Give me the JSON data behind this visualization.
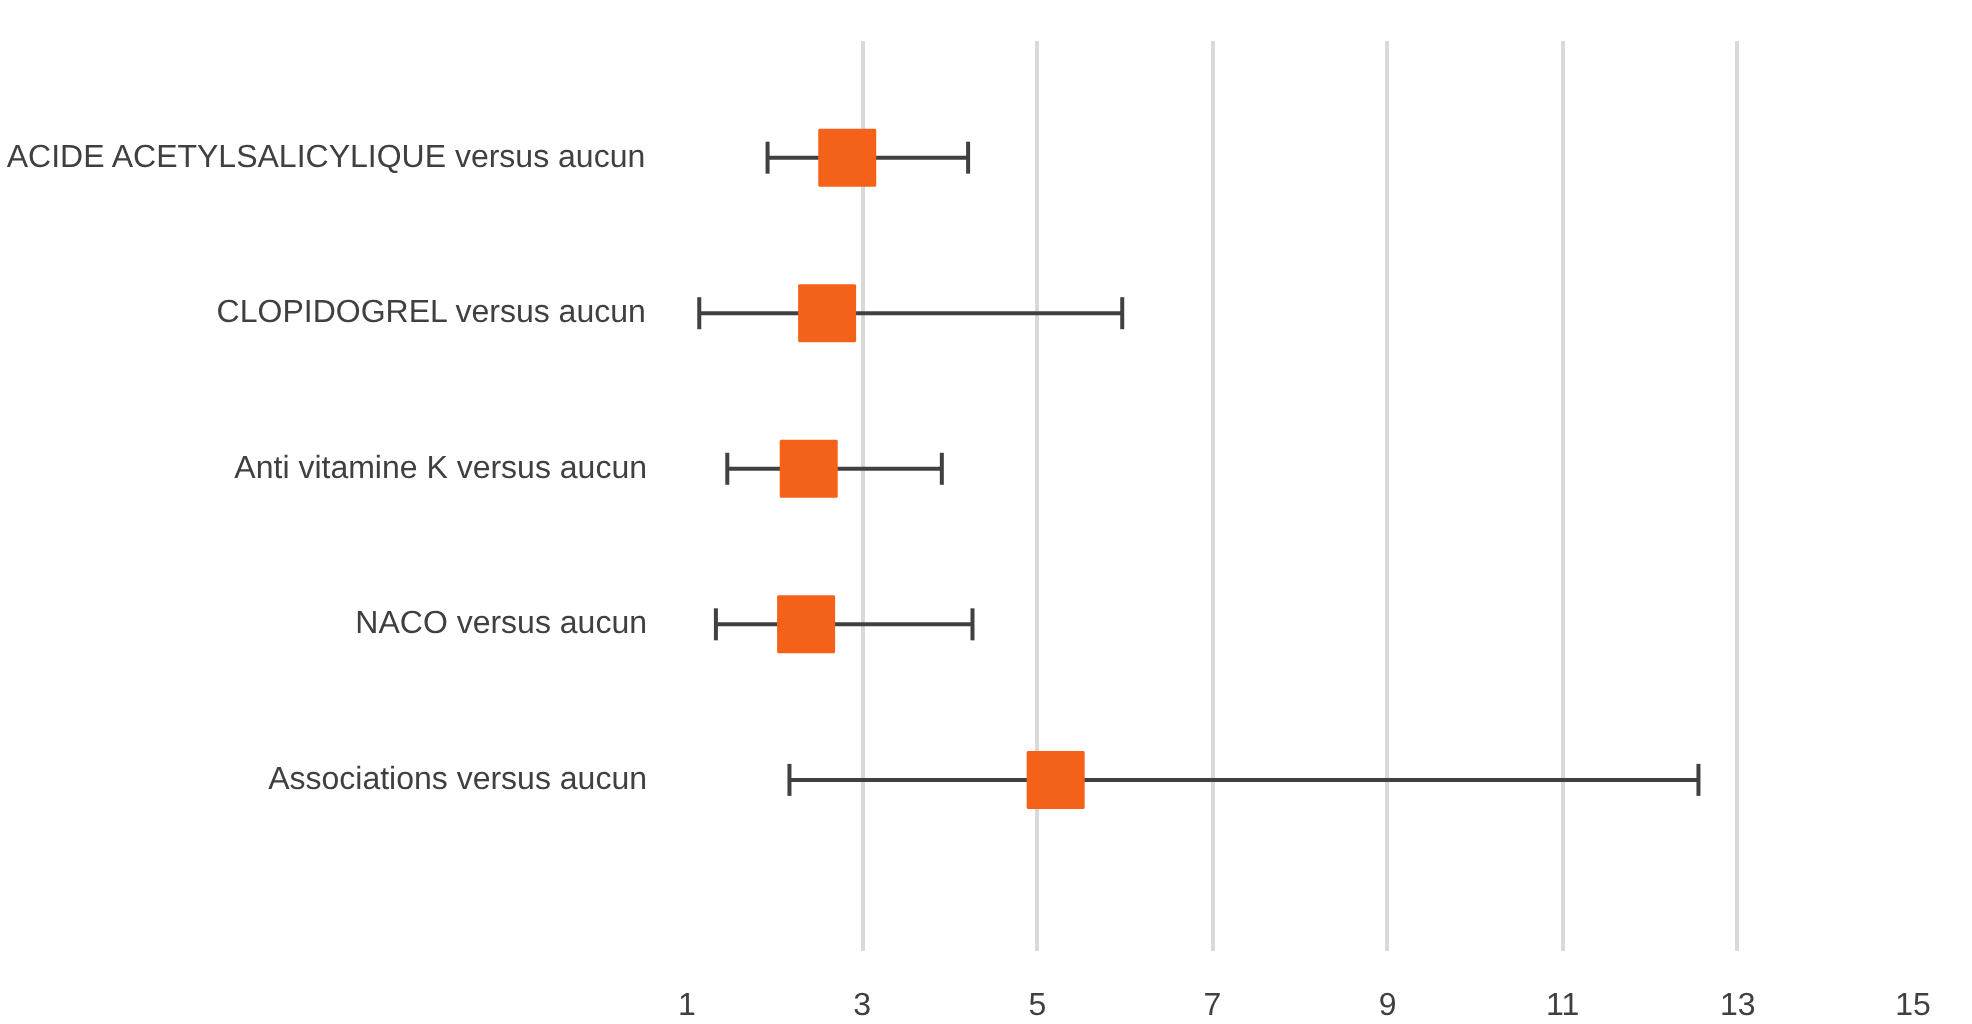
{
  "chart_data": {
    "type": "scatter",
    "orientation": "horizontal",
    "categories": [
      "ACIDE ACETYLSALICYLIQUE versus aucun",
      "CLOPIDOGREL versus aucun",
      "Anti vitamine K versus aucun",
      "NACO versus aucun",
      "Associations versus aucun"
    ],
    "values": [
      2.83,
      2.6,
      2.39,
      2.36,
      5.21
    ],
    "errors": [
      [
        1.92,
        4.21
      ],
      [
        1.14,
        5.97
      ],
      [
        1.46,
        3.91
      ],
      [
        1.33,
        4.26
      ],
      [
        2.17,
        12.55
      ]
    ],
    "color": "#f4621a",
    "marker": "square",
    "xlim": [
      1,
      15
    ],
    "xticks": [
      1,
      3,
      5,
      7,
      9,
      11,
      13,
      15
    ],
    "grid": "x"
  }
}
